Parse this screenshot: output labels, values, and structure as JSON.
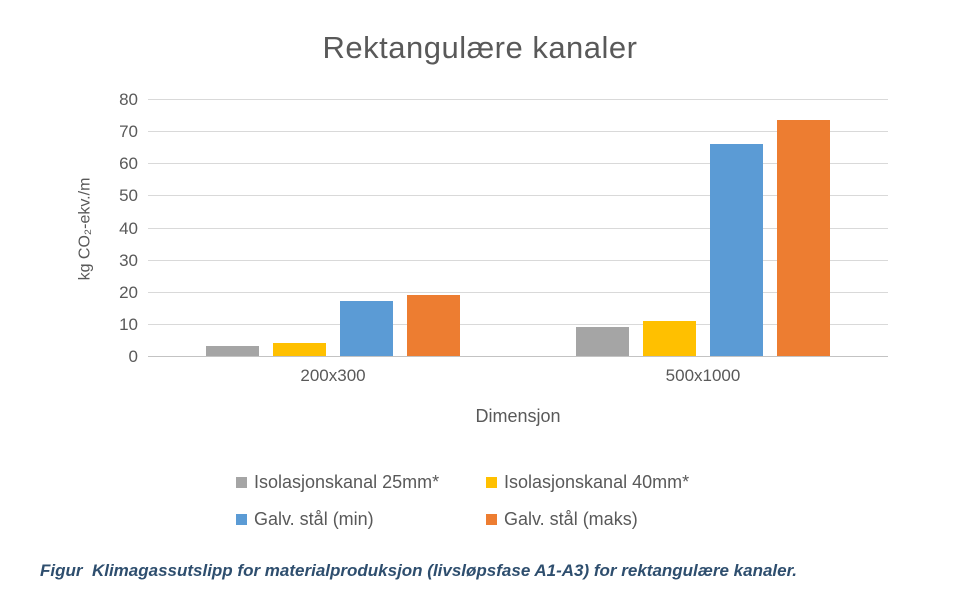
{
  "title": "Rektangulære kanaler",
  "caption": "Figur  Klimagassutslipp for materialproduksjon (livsløpsfase A1-A3) for rektangulære kanaler.",
  "colors": {
    "text_gray": "#595959",
    "gridline": "#d9d9d9",
    "axis_line": "#c3c3c3",
    "caption_blue": "#2e4e6e"
  },
  "chart_data": {
    "type": "bar",
    "title": "Rektangulære kanaler",
    "categories": [
      "200x300",
      "500x1000"
    ],
    "series": [
      {
        "name": "Isolasjonskanal 25mm*",
        "color": "#a5a5a5",
        "values": [
          3,
          9
        ]
      },
      {
        "name": "Isolasjonskanal 40mm*",
        "color": "#ffc000",
        "values": [
          4,
          11
        ]
      },
      {
        "name": "Galv. stål (min)",
        "color": "#5b9bd5",
        "values": [
          17,
          66
        ]
      },
      {
        "name": "Galv. stål (maks)",
        "color": "#ed7d31",
        "values": [
          19,
          73.5
        ]
      }
    ],
    "xlabel": "Dimensjon",
    "ylabel": "kg CO₂-ekv./m",
    "ylim": [
      0,
      80
    ],
    "ytick_step": 10,
    "grid": true,
    "legend_position": "bottom"
  }
}
